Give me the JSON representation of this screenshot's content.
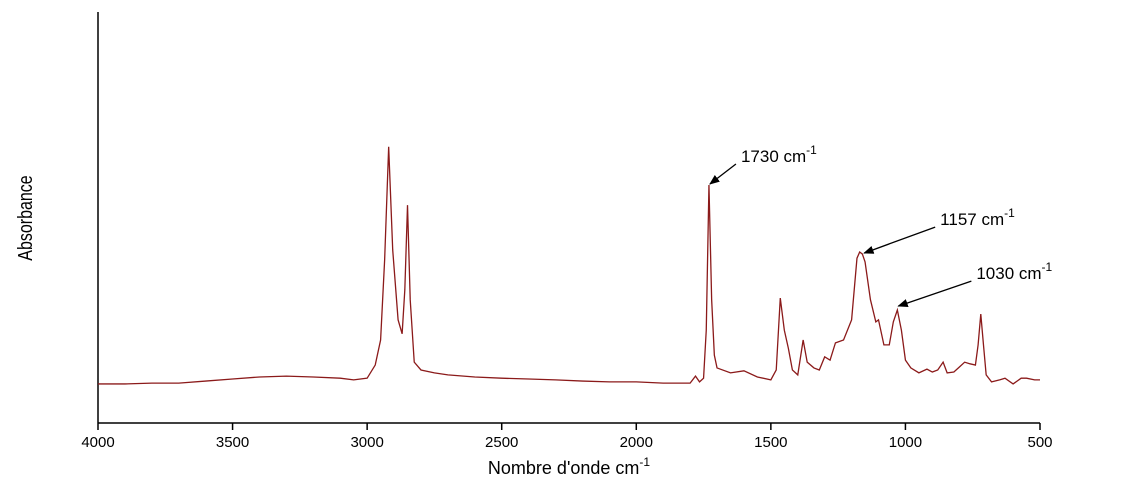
{
  "chart_data": {
    "type": "line",
    "xlabel": {
      "text": "Nombre d'onde cm",
      "exponent": "-1"
    },
    "ylabel": "Absorbance",
    "xlim": [
      4000,
      500
    ],
    "xticks": [
      4000,
      3500,
      3000,
      2500,
      2000,
      1500,
      1000,
      500
    ],
    "ylim": [
      0,
      100
    ],
    "color": "#8b1a1a",
    "x": [
      4000,
      3900,
      3800,
      3700,
      3600,
      3500,
      3400,
      3300,
      3200,
      3100,
      3050,
      3000,
      2970,
      2950,
      2935,
      2920,
      2905,
      2885,
      2870,
      2860,
      2850,
      2840,
      2825,
      2800,
      2750,
      2700,
      2600,
      2500,
      2400,
      2300,
      2200,
      2100,
      2000,
      1900,
      1800,
      1780,
      1765,
      1750,
      1740,
      1730,
      1720,
      1710,
      1700,
      1650,
      1600,
      1550,
      1500,
      1480,
      1465,
      1450,
      1435,
      1420,
      1400,
      1380,
      1365,
      1340,
      1320,
      1300,
      1280,
      1260,
      1230,
      1200,
      1180,
      1170,
      1160,
      1150,
      1130,
      1110,
      1100,
      1080,
      1060,
      1045,
      1030,
      1015,
      1000,
      980,
      950,
      920,
      900,
      880,
      860,
      845,
      820,
      800,
      780,
      760,
      740,
      730,
      720,
      710,
      700,
      680,
      650,
      630,
      600,
      570,
      550,
      520,
      500
    ],
    "values": [
      9.5,
      9.5,
      9.7,
      9.7,
      10.2,
      10.7,
      11.2,
      11.4,
      11.2,
      10.9,
      10.5,
      10.9,
      14.1,
      20.2,
      39.7,
      67.2,
      42.1,
      25.1,
      21.7,
      32.4,
      53.0,
      30.0,
      14.8,
      12.9,
      12.2,
      11.7,
      11.2,
      10.9,
      10.7,
      10.5,
      10.2,
      10.0,
      10.0,
      9.7,
      9.7,
      11.4,
      10.0,
      10.9,
      22.6,
      57.9,
      30.0,
      16.5,
      13.4,
      12.2,
      12.7,
      11.2,
      10.5,
      12.9,
      30.4,
      22.6,
      18.2,
      12.9,
      11.7,
      20.2,
      14.8,
      13.4,
      12.9,
      16.1,
      15.3,
      19.5,
      20.2,
      25.1,
      40.1,
      41.6,
      41.1,
      39.2,
      30.0,
      24.6,
      25.1,
      19.0,
      19.0,
      24.6,
      27.5,
      22.6,
      15.3,
      13.4,
      12.2,
      13.1,
      12.4,
      12.9,
      14.8,
      12.2,
      12.4,
      13.6,
      14.8,
      14.4,
      14.1,
      19.0,
      26.5,
      19.0,
      11.7,
      10.0,
      10.5,
      10.9,
      9.5,
      10.9,
      10.9,
      10.5,
      10.5
    ],
    "annotations": [
      {
        "label": "1730 cm",
        "exponent": "-1",
        "x": 1730,
        "y": 57.9
      },
      {
        "label": "1157 cm",
        "exponent": "-1",
        "x": 1157,
        "y": 41.1
      },
      {
        "label": "1030 cm",
        "exponent": "-1",
        "x": 1030,
        "y": 28.2
      }
    ]
  }
}
